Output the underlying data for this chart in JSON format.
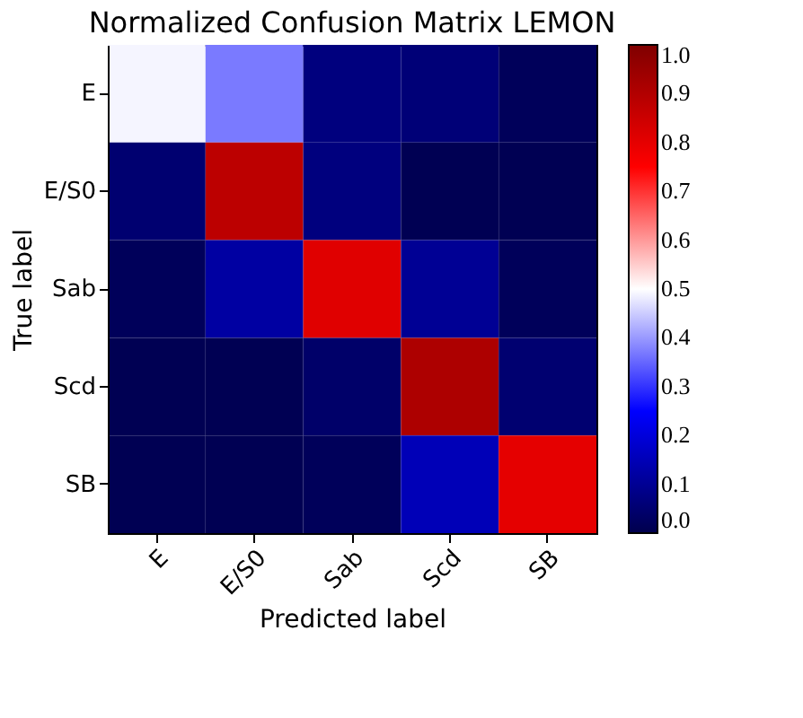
{
  "chart_data": {
    "type": "heatmap",
    "title": "Normalized Confusion Matrix LEMON",
    "xlabel": "Predicted label",
    "ylabel": "True label",
    "categories": [
      "E",
      "E/S0",
      "Sab",
      "Scd",
      "SB"
    ],
    "y_categories": [
      "E",
      "E/S0",
      "Sab",
      "Scd",
      "SB"
    ],
    "cells": [
      [
        0.49,
        0.37,
        0.07,
        0.06,
        0.02
      ],
      [
        0.05,
        0.88,
        0.07,
        0.01,
        0.01
      ],
      [
        0.02,
        0.12,
        0.81,
        0.1,
        0.02
      ],
      [
        0.01,
        0.01,
        0.04,
        0.91,
        0.05
      ],
      [
        0.01,
        0.01,
        0.02,
        0.15,
        0.8
      ]
    ],
    "clim": [
      0,
      1
    ],
    "cticks": [
      {
        "value": 0,
        "label": "0.0"
      },
      0.1,
      0.2,
      0.3,
      0.4,
      0.5,
      0.6,
      0.7,
      0.8,
      0.9,
      {
        "value": 1,
        "label": "1.0"
      }
    ]
  }
}
